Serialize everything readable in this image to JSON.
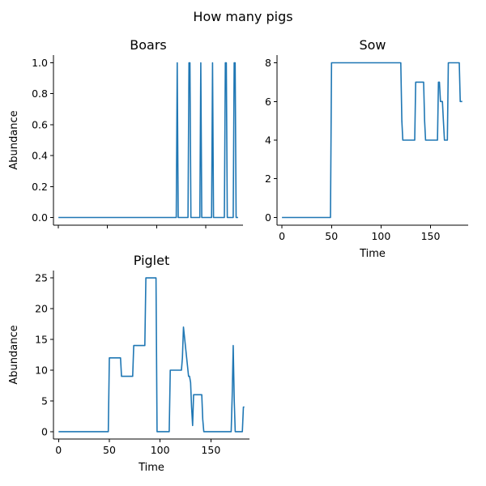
{
  "figure": {
    "title": "How many pigs"
  },
  "chart_data": [
    {
      "type": "line",
      "title": "Boars",
      "xlabel": "",
      "ylabel": "Abundance",
      "xlim": [
        -5,
        188
      ],
      "ylim": [
        -0.05,
        1.05
      ],
      "xticks": [
        0,
        50,
        100,
        150
      ],
      "xtick_labels": [
        "",
        "",
        "",
        ""
      ],
      "yticks": [
        0,
        0.2,
        0.4,
        0.6,
        0.8,
        1.0
      ],
      "ytick_labels": [
        "0.0",
        "0.2",
        "0.4",
        "0.6",
        "0.8",
        "1.0"
      ],
      "color": "#1f77b4",
      "series": [
        {
          "x": [
            0,
            120,
            121,
            122,
            132,
            133,
            134,
            135,
            144,
            145,
            146,
            156,
            157,
            158,
            169,
            170,
            171,
            172,
            178,
            179,
            180,
            181,
            182,
            183
          ],
          "y": [
            0,
            0,
            1,
            0,
            0,
            1,
            1,
            0,
            0,
            1,
            0,
            0,
            1,
            0,
            0,
            1,
            1,
            0,
            0,
            1,
            1,
            0,
            0,
            0
          ]
        }
      ]
    },
    {
      "type": "line",
      "title": "Sow",
      "xlabel": "Time",
      "ylabel": "",
      "xlim": [
        -5,
        188
      ],
      "ylim": [
        -0.4,
        8.4
      ],
      "xticks": [
        0,
        50,
        100,
        150
      ],
      "xtick_labels": [
        "0",
        "50",
        "100",
        "150"
      ],
      "yticks": [
        0,
        2,
        4,
        6,
        8
      ],
      "ytick_labels": [
        "0",
        "2",
        "4",
        "6",
        "8"
      ],
      "color": "#1f77b4",
      "series": [
        {
          "x": [
            0,
            49,
            50,
            120,
            121,
            122,
            134,
            135,
            143,
            144,
            145,
            157,
            158,
            159,
            160,
            161,
            162,
            163,
            164,
            165,
            167,
            168,
            169,
            179,
            180,
            182
          ],
          "y": [
            0,
            0,
            8,
            8,
            5,
            4,
            4,
            7,
            7,
            5,
            4,
            4,
            7,
            7,
            6,
            6,
            6,
            5,
            4,
            4,
            4,
            8,
            8,
            8,
            6,
            6
          ]
        }
      ]
    },
    {
      "type": "line",
      "title": "Piglet",
      "xlabel": "Time",
      "ylabel": "Abundance",
      "xlim": [
        -5,
        188
      ],
      "ylim": [
        -1.2,
        26.2
      ],
      "xticks": [
        0,
        50,
        100,
        150
      ],
      "xtick_labels": [
        "0",
        "50",
        "100",
        "150"
      ],
      "yticks": [
        0,
        5,
        10,
        15,
        20,
        25
      ],
      "ytick_labels": [
        "0",
        "5",
        "10",
        "15",
        "20",
        "25"
      ],
      "color": "#1f77b4",
      "series": [
        {
          "x": [
            0,
            49,
            50,
            61,
            62,
            73,
            74,
            85,
            86,
            96,
            97,
            109,
            110,
            120,
            121,
            122,
            123,
            128,
            129,
            130,
            131,
            132,
            133,
            134,
            141,
            142,
            143,
            144,
            170,
            171,
            172,
            173,
            174,
            181,
            182,
            183
          ],
          "y": [
            0,
            0,
            12,
            12,
            9,
            9,
            14,
            14,
            25,
            25,
            0,
            0,
            10,
            10,
            10,
            12,
            17,
            9,
            9,
            8,
            4,
            1,
            6,
            6,
            6,
            2,
            0,
            0,
            0,
            6,
            14,
            5,
            0,
            0,
            4,
            4
          ]
        }
      ]
    }
  ]
}
